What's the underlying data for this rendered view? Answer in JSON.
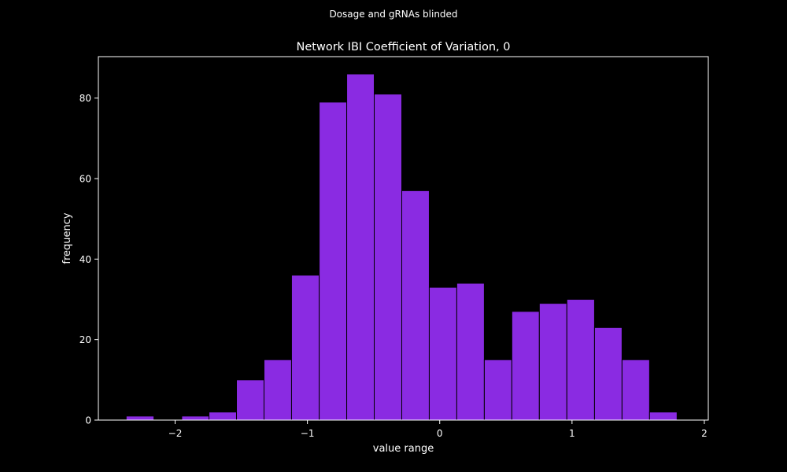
{
  "figure": {
    "suptitle": "Dosage and gRNAs blinded",
    "background": "#000000",
    "foreground": "#ffffff"
  },
  "chart_data": {
    "type": "bar",
    "title": "Network IBI Coefficient of Variation, 0",
    "xlabel": "value range",
    "ylabel": "frequency",
    "xlim": [
      -2.58,
      2.03
    ],
    "ylim": [
      0,
      90.3
    ],
    "grid": false,
    "legend": "none",
    "bar_color": "#8a2be2",
    "edge_color": "#000000",
    "x_ticks": [
      -2,
      -1,
      0,
      1,
      2
    ],
    "x_tick_labels": [
      "−2",
      "−1",
      "0",
      "1",
      "2"
    ],
    "y_ticks": [
      0,
      20,
      40,
      60,
      80
    ],
    "y_tick_labels": [
      "0",
      "20",
      "40",
      "60",
      "80"
    ],
    "bin_edges": [
      -2.37,
      -2.16,
      -1.95,
      -1.744,
      -1.536,
      -1.328,
      -1.12,
      -0.911,
      -0.703,
      -0.495,
      -0.287,
      -0.079,
      0.129,
      0.337,
      0.545,
      0.753,
      0.961,
      1.17,
      1.378,
      1.586,
      1.794
    ],
    "values": [
      1,
      0,
      1,
      2,
      10,
      15,
      36,
      79,
      86,
      81,
      57,
      33,
      34,
      15,
      27,
      29,
      30,
      23,
      15,
      2
    ]
  }
}
